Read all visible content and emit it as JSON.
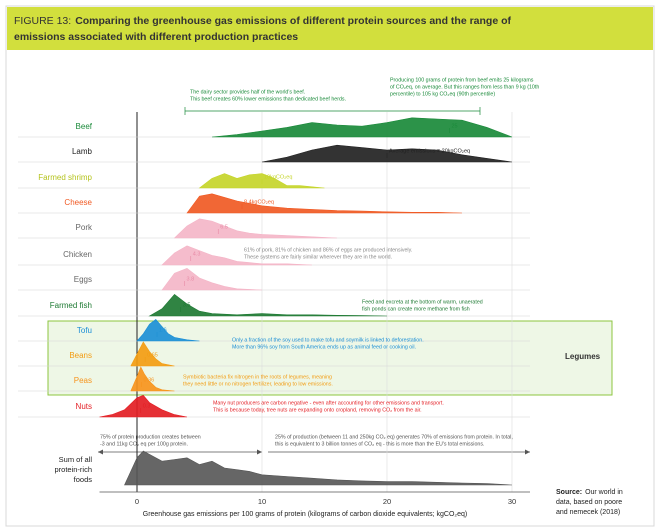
{
  "chart_data": {
    "type": "ridgeline",
    "figure_label": "FIGURE 13:",
    "title_lines": [
      "Comparing the greenhouse gas emissions of different protein sources and the range of",
      "emissions associated with different production practices"
    ],
    "xlabel": "Greenhouse gas emissions per 100 grams of protein (kilograms of carbon dioxide equivalents; kgCO₂eq)",
    "xlim": [
      -3,
      31
    ],
    "xticks": [
      0,
      10,
      20,
      30
    ],
    "grid": true,
    "series": [
      {
        "name": "Beef",
        "color": "#1a8a3a",
        "label_color": "#1a8a3a",
        "x": [
          6,
          8,
          10,
          12,
          14,
          16,
          18,
          20,
          22,
          24,
          26,
          28,
          30
        ],
        "values": [
          0,
          0.1,
          0.25,
          0.4,
          0.6,
          0.5,
          0.45,
          0.6,
          0.8,
          0.75,
          0.7,
          0.4,
          0
        ],
        "mean": 25,
        "mean_label": "25"
      },
      {
        "name": "Lamb",
        "color": "#222222",
        "label_color": "#222222",
        "x": [
          10,
          12,
          14,
          16,
          18,
          20,
          22,
          24,
          26,
          28,
          30
        ],
        "values": [
          0,
          0.2,
          0.5,
          0.7,
          0.6,
          0.5,
          0.55,
          0.5,
          0.3,
          0.15,
          0
        ],
        "mean": 20,
        "mean_label": "Average emissions = 20kgCO₂eq"
      },
      {
        "name": "Farmed shrimp",
        "color": "#c5d52a",
        "label_color": "#b5c41f",
        "x": [
          5,
          6,
          7,
          8,
          9,
          10,
          11,
          12,
          13,
          14,
          15
        ],
        "values": [
          0,
          0.4,
          0.6,
          0.4,
          0.55,
          0.6,
          0.4,
          0.1,
          0.1,
          0.05,
          0
        ],
        "mean": 10,
        "mean_label": "10kgCO₂eq"
      },
      {
        "name": "Cheese",
        "color": "#f05a24",
        "label_color": "#f05a24",
        "x": [
          4,
          5,
          6,
          7,
          8,
          9,
          10,
          12,
          14,
          16,
          18,
          20,
          22,
          24,
          26
        ],
        "values": [
          0,
          0.7,
          0.8,
          0.65,
          0.5,
          0.4,
          0.3,
          0.2,
          0.15,
          0.1,
          0.08,
          0.05,
          0.03,
          0.03,
          0
        ],
        "mean": 8.4,
        "mean_label": "8.4kgCO₂eq"
      },
      {
        "name": "Pork",
        "color": "#f4b6c8",
        "label_color": "#666666",
        "x": [
          3,
          4,
          5,
          6,
          7,
          8,
          9,
          10,
          12,
          14,
          16
        ],
        "values": [
          0,
          0.5,
          0.8,
          0.7,
          0.5,
          0.3,
          0.2,
          0.15,
          0.1,
          0.05,
          0
        ],
        "mean": 6.5,
        "mean_label": "6.5"
      },
      {
        "name": "Chicken",
        "color": "#f4b6c8",
        "label_color": "#666666",
        "x": [
          2,
          3,
          4,
          5,
          6,
          7,
          8,
          9,
          10,
          12,
          14
        ],
        "values": [
          0,
          0.5,
          0.8,
          0.6,
          0.4,
          0.3,
          0.15,
          0.1,
          0.05,
          0.05,
          0
        ],
        "mean": 4.3,
        "mean_label": "4.3"
      },
      {
        "name": "Eggs",
        "color": "#f4b6c8",
        "label_color": "#666666",
        "x": [
          2,
          3,
          4,
          5,
          6,
          7,
          8,
          10
        ],
        "values": [
          0,
          0.7,
          0.9,
          0.5,
          0.3,
          0.15,
          0.05,
          0
        ],
        "mean": 3.8,
        "mean_label": "3.8"
      },
      {
        "name": "Farmed fish",
        "color": "#1e7a33",
        "label_color": "#1e7a33",
        "x": [
          1,
          2,
          3,
          4,
          5,
          6,
          8,
          10,
          12,
          14,
          16,
          18,
          20
        ],
        "values": [
          0,
          0.3,
          0.9,
          0.5,
          0.2,
          0.1,
          0.05,
          0.1,
          0.05,
          0.05,
          0.03,
          0.02,
          0
        ],
        "mean": 3.5,
        "mean_label": "3.5"
      },
      {
        "name": "Tofu",
        "color": "#1c8fd6",
        "label_color": "#1c8fd6",
        "x": [
          0,
          0.5,
          1,
          1.5,
          2,
          2.5,
          3,
          4,
          5
        ],
        "values": [
          0,
          0.3,
          0.7,
          0.9,
          0.6,
          0.3,
          0.15,
          0.05,
          0
        ],
        "mean": 1.6,
        "mean_label": "1.6"
      },
      {
        "name": "Beans",
        "color": "#f39c12",
        "label_color": "#f39c12",
        "x": [
          -0.5,
          0,
          0.5,
          1,
          1.5,
          2,
          3
        ],
        "values": [
          0,
          0.5,
          1,
          0.6,
          0.3,
          0.1,
          0
        ],
        "mean": 0.65,
        "mean_label": "0.65"
      },
      {
        "name": "Peas",
        "color": "#f7941d",
        "label_color": "#f7941d",
        "x": [
          -0.5,
          0,
          0.3,
          0.6,
          1,
          1.5,
          2,
          3
        ],
        "values": [
          0,
          0.6,
          1,
          0.7,
          0.4,
          0.15,
          0.05,
          0
        ],
        "mean": 0.36,
        "mean_label": "0.36"
      },
      {
        "name": "Nuts",
        "color": "#e31e24",
        "label_color": "#e31e24",
        "x": [
          -3,
          -2,
          -1,
          0,
          0.5,
          1,
          2,
          3,
          4
        ],
        "values": [
          0,
          0.1,
          0.3,
          0.8,
          0.9,
          0.6,
          0.3,
          0.1,
          0
        ],
        "mean": 0.3,
        "mean_label": "0.3"
      }
    ],
    "total": {
      "name_lines": [
        "Sum of all",
        "protein-rich",
        "foods"
      ],
      "color": "#555555",
      "x": [
        -1,
        0,
        0.5,
        1,
        2,
        3,
        4,
        5,
        6,
        7,
        8,
        9,
        10,
        12,
        14,
        16,
        18,
        20,
        22,
        24,
        26,
        28,
        30
      ],
      "values": [
        0,
        0.8,
        1,
        0.9,
        0.7,
        0.75,
        0.8,
        0.6,
        0.7,
        0.5,
        0.45,
        0.4,
        0.3,
        0.25,
        0.2,
        0.15,
        0.12,
        0.1,
        0.1,
        0.08,
        0.06,
        0.04,
        0
      ]
    },
    "legumes_label": "Legumes",
    "annotations": [
      {
        "color": "#1a8a3a",
        "lines": [
          "The dairy sector provides half of the world's beef.",
          "This beef creates 60% lower emissions than dedicated beef herds."
        ]
      },
      {
        "color": "#1a8a3a",
        "lines": [
          "Producing 100 grams of protein from beef emits 25 kilograms",
          "of CO₂eq, on average. But this ranges from less than 9 kg (10th",
          "percentile) to 105 kg CO₂eq (90th percentile)"
        ]
      },
      {
        "color": "#888888",
        "lines": [
          "61% of pork, 81% of chicken and 86% of eggs are produced intensively.",
          "These systems are fairly similar wherever they are in the world."
        ]
      },
      {
        "color": "#1e7a33",
        "lines": [
          "Feed and excreta at the bottom of warm, unaerated",
          "fish ponds can create more methane from fish"
        ]
      },
      {
        "color": "#1c8fd6",
        "lines": [
          "Only a fraction of the soy used to make tofu and soymilk is linked to deforestation.",
          "More than 96% soy from South America ends up as animal feed or cooking oil."
        ]
      },
      {
        "color": "#f39c12",
        "lines": [
          "Symbiotic bacteria fix nitrogen in the roots of legumes, meaning",
          "they need little or no nitrogen fertilizer, leading to low emissions."
        ]
      },
      {
        "color": "#e31e24",
        "lines": [
          "Many nut producers are carbon negative - even after accounting for other emissions and transport.",
          "This is because today, tree nuts are expanding onto cropland, removing CO₂ from the air."
        ]
      },
      {
        "color": "#555555",
        "lines": [
          "75% of protein production creates between",
          "-3 and 11kg CO₂ eq per 100g protein."
        ]
      },
      {
        "color": "#555555",
        "lines": [
          "25% of production (between 11 and 250kg CO₂ eq) generates 70% of emissions from protein. In total,",
          "this is equivalent to 3 billion tonnes of CO₂ eq - this is more than the EU's total emissions."
        ]
      }
    ],
    "source": {
      "label": "Source:",
      "lines": [
        "Our world in",
        "data, based on poore",
        "and nemecek (2018)"
      ]
    }
  }
}
